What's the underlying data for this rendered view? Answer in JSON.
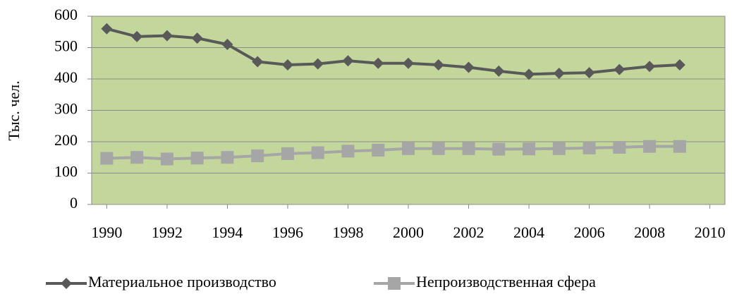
{
  "chart_data": {
    "type": "line",
    "y_label": "Тыс. чел.",
    "x": [
      1990,
      1991,
      1992,
      1993,
      1994,
      1995,
      1996,
      1997,
      1998,
      1999,
      2000,
      2001,
      2002,
      2003,
      2004,
      2005,
      2006,
      2007,
      2008,
      2009
    ],
    "series": [
      {
        "name": "Материальное производство",
        "color": "#595959",
        "marker": "diamond",
        "values": [
          560,
          535,
          538,
          530,
          510,
          455,
          445,
          448,
          458,
          450,
          450,
          445,
          437,
          425,
          415,
          418,
          420,
          430,
          440,
          445
        ]
      },
      {
        "name": "Непроизводственная сфера",
        "color": "#a6a6a6",
        "marker": "square",
        "values": [
          147,
          150,
          145,
          148,
          150,
          155,
          162,
          165,
          170,
          173,
          178,
          178,
          178,
          176,
          177,
          178,
          180,
          182,
          185,
          185
        ]
      }
    ],
    "xlim": [
      1989.5,
      2010.5
    ],
    "xticks": [
      1990,
      1992,
      1994,
      1996,
      1998,
      2000,
      2002,
      2004,
      2006,
      2008,
      2010
    ],
    "ylim": [
      0,
      600
    ],
    "yticks": [
      0,
      100,
      200,
      300,
      400,
      500,
      600
    ],
    "grid": true,
    "plot_background": "#c3d69b",
    "legend": "bottom"
  }
}
